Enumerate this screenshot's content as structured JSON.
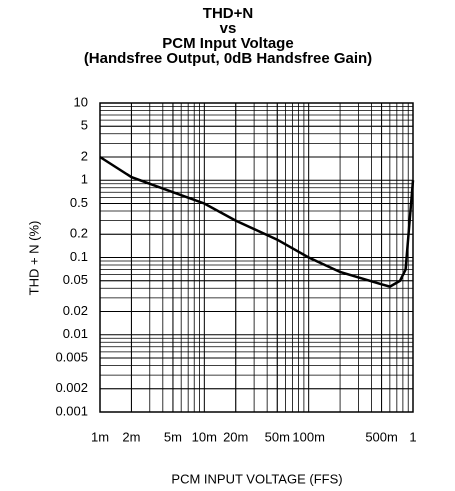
{
  "chart_data": {
    "type": "line",
    "title": [
      "THD+N",
      "vs",
      "PCM Input Voltage",
      "(Handsfree Output, 0dB Handsfree Gain)"
    ],
    "xlabel": "PCM INPUT VOLTAGE (FFS)",
    "ylabel": "THD + N (%)",
    "x": [
      0.001,
      0.002,
      0.005,
      0.01,
      0.02,
      0.05,
      0.1,
      0.2,
      0.5,
      0.6,
      0.75,
      0.85,
      1
    ],
    "series": [
      {
        "name": "THD+N",
        "color": "#000000",
        "values": [
          2,
          1.1,
          0.7,
          0.5,
          0.3,
          0.17,
          0.1,
          0.065,
          0.045,
          0.042,
          0.05,
          0.07,
          1
        ]
      }
    ],
    "xlim": [
      0.001,
      1
    ],
    "ylim": [
      0.001,
      10
    ],
    "xticks": [
      {
        "value": 0.001,
        "label": "1m"
      },
      {
        "value": 0.002,
        "label": "2m"
      },
      {
        "value": 0.005,
        "label": "5m"
      },
      {
        "value": 0.01,
        "label": "10m"
      },
      {
        "value": 0.02,
        "label": "20m"
      },
      {
        "value": 0.05,
        "label": "50m"
      },
      {
        "value": 0.1,
        "label": "100m"
      },
      {
        "value": 0.5,
        "label": "500m"
      },
      1
    ],
    "yticks": [
      10,
      5,
      2,
      1,
      0.5,
      0.2,
      0.1,
      0.05,
      0.02,
      0.01,
      0.005,
      0.002,
      0.001
    ],
    "log_x": true,
    "log_y": true,
    "grid": true
  }
}
